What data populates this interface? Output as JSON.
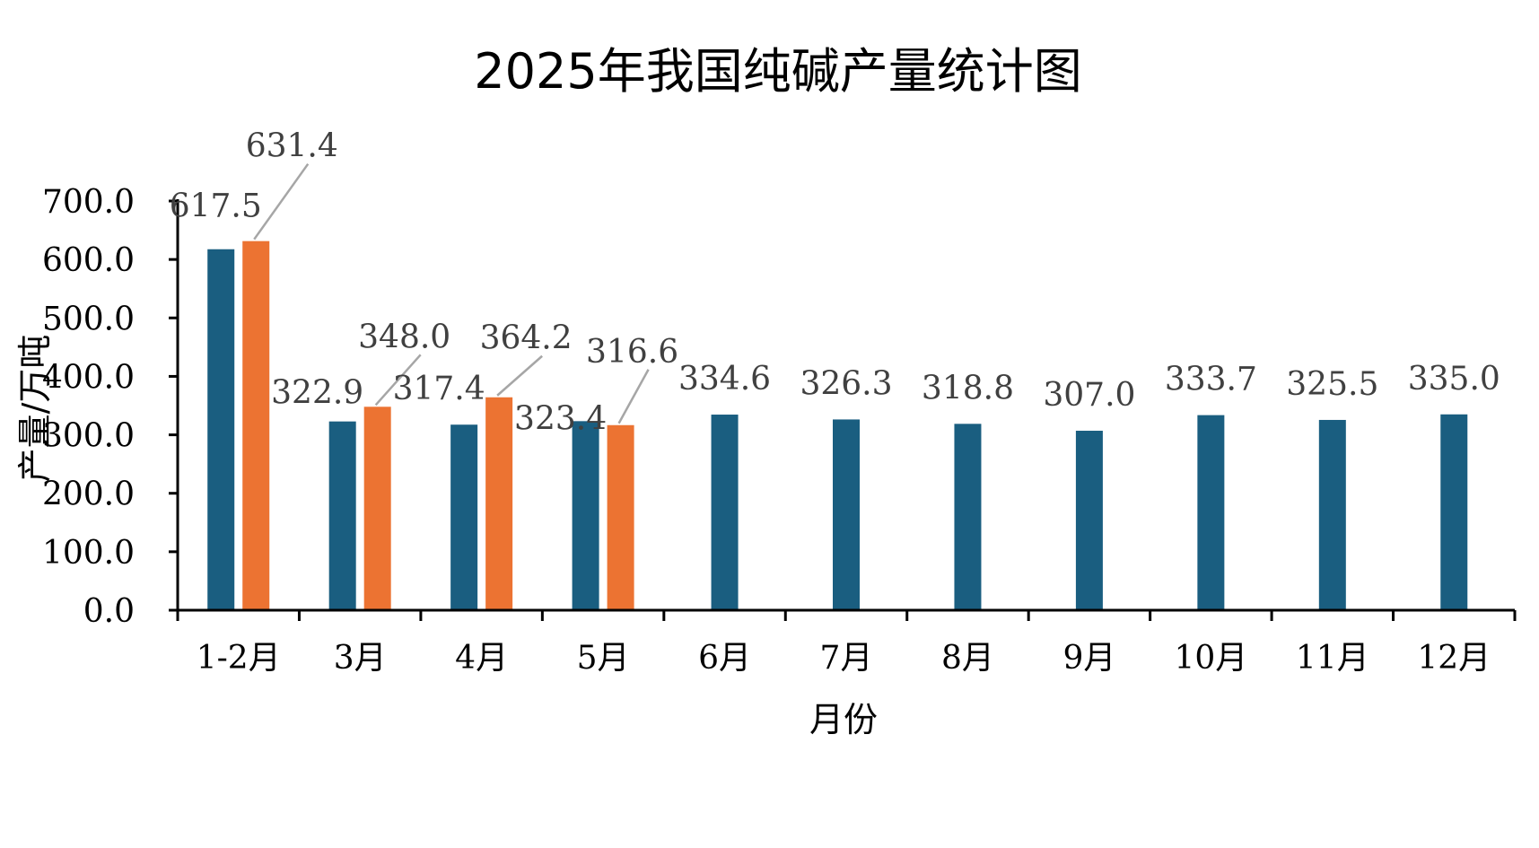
{
  "chart_data": {
    "type": "bar",
    "title": "2025年我国纯碱产量统计图",
    "xlabel": "月份",
    "ylabel": "产量/万吨",
    "categories": [
      "1-2月",
      "3月",
      "4月",
      "5月",
      "6月",
      "7月",
      "8月",
      "9月",
      "10月",
      "11月",
      "12月"
    ],
    "series": [
      {
        "values": [
          617.5,
          322.9,
          317.4,
          323.4,
          334.6,
          326.3,
          318.8,
          307.0,
          333.7,
          325.5,
          335.0
        ]
      },
      {
        "values": [
          631.4,
          348.0,
          364.2,
          316.6,
          null,
          null,
          null,
          null,
          null,
          null,
          null
        ]
      }
    ],
    "ylim": [
      0,
      700
    ],
    "yticks": [
      "0.0",
      "100.0",
      "200.0",
      "300.0",
      "400.0",
      "500.0",
      "600.0",
      "700.0"
    ],
    "data_labels": [
      [
        "617.5",
        "322.9",
        "317.4",
        "323.4",
        "334.6",
        "326.3",
        "318.8",
        "307.0",
        "333.7",
        "325.5",
        "335.0"
      ],
      [
        "631.4",
        "348.0",
        "364.2",
        "316.6",
        null,
        null,
        null,
        null,
        null,
        null,
        null
      ]
    ],
    "colors": [
      "#1a5e80",
      "#ec7332"
    ],
    "legend": "none",
    "grid": false
  }
}
